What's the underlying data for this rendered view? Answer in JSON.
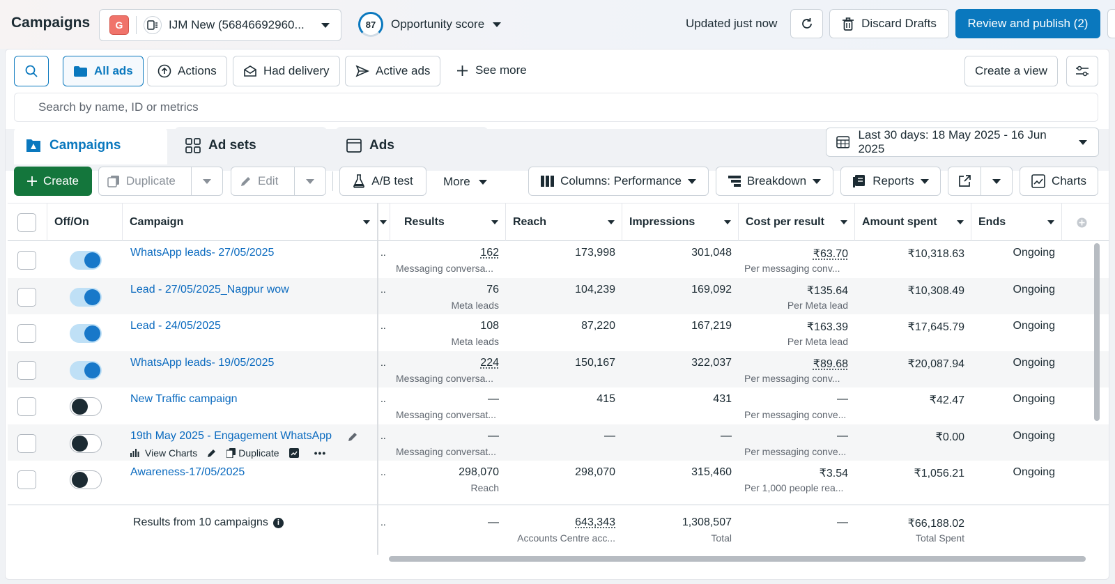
{
  "header": {
    "title": "Campaigns",
    "account_badge": "G",
    "account_name": "IJM New (56846692960...",
    "opportunity_score": "87",
    "opportunity_label": "Opportunity score",
    "updated": "Updated just now",
    "discard_label": "Discard Drafts",
    "publish_label": "Review and publish (2)"
  },
  "filters": {
    "all_ads": "All ads",
    "actions": "Actions",
    "had_delivery": "Had delivery",
    "active_ads": "Active ads",
    "see_more": "See more",
    "create_view": "Create a view"
  },
  "search": {
    "placeholder": "Search by name, ID or metrics"
  },
  "tabs": [
    {
      "label": "Campaigns"
    },
    {
      "label": "Ad sets"
    },
    {
      "label": "Ads"
    }
  ],
  "date_range": "Last 30 days: 18 May 2025 - 16 Jun 2025",
  "toolbar": {
    "create": "Create",
    "duplicate": "Duplicate",
    "edit": "Edit",
    "ab_test": "A/B test",
    "more": "More",
    "columns": "Columns: Performance",
    "breakdown": "Breakdown",
    "reports": "Reports",
    "charts": "Charts"
  },
  "table": {
    "headers": {
      "offon": "Off/On",
      "campaign": "Campaign",
      "results": "Results",
      "reach": "Reach",
      "impressions": "Impressions",
      "cost": "Cost per result",
      "amount": "Amount spent",
      "ends": "Ends"
    },
    "rows": [
      {
        "on": true,
        "name": "WhatsApp leads- 27/05/2025",
        "results": "162",
        "results_sub": "Messaging conversa...",
        "reach": "173,998",
        "impressions": "301,048",
        "cost": "₹63.70",
        "cost_sub": "Per messaging conv...",
        "amount": "₹10,318.63",
        "ends": "Ongoing"
      },
      {
        "on": true,
        "name": "Lead - 27/05/2025_Nagpur wow",
        "results": "76",
        "results_sub": "Meta leads",
        "reach": "104,239",
        "impressions": "169,092",
        "cost": "₹135.64",
        "cost_sub": "Per Meta lead",
        "amount": "₹10,308.49",
        "ends": "Ongoing"
      },
      {
        "on": true,
        "name": "Lead - 24/05/2025",
        "results": "108",
        "results_sub": "Meta leads",
        "reach": "87,220",
        "impressions": "167,219",
        "cost": "₹163.39",
        "cost_sub": "Per Meta lead",
        "amount": "₹17,645.79",
        "ends": "Ongoing"
      },
      {
        "on": true,
        "name": "WhatsApp leads- 19/05/2025",
        "results": "224",
        "results_sub": "Messaging conversa...",
        "reach": "150,167",
        "impressions": "322,037",
        "cost": "₹89.68",
        "cost_sub": "Per messaging conv...",
        "amount": "₹20,087.94",
        "ends": "Ongoing"
      },
      {
        "on": false,
        "name": "New Traffic campaign",
        "results": "—",
        "results_sub": "Messaging conversat...",
        "reach": "415",
        "impressions": "431",
        "cost": "—",
        "cost_sub": "Per messaging conve...",
        "amount": "₹42.47",
        "ends": "Ongoing"
      },
      {
        "on": false,
        "name": "19th May 2025 - Engagement WhatsApp",
        "results": "—",
        "results_sub": "Messaging conversat...",
        "reach": "—",
        "impressions": "—",
        "cost": "—",
        "cost_sub": "Per messaging conve...",
        "amount": "₹0.00",
        "ends": "Ongoing"
      },
      {
        "on": false,
        "name": "Awareness-17/05/2025",
        "results": "298,070",
        "results_sub": "Reach",
        "reach": "298,070",
        "impressions": "315,460",
        "cost": "₹3.54",
        "cost_sub": "Per 1,000 people rea...",
        "amount": "₹1,056.21",
        "ends": "Ongoing"
      }
    ],
    "hover_actions": {
      "view_charts": "View Charts",
      "duplicate": "Duplicate"
    },
    "truncated_marker": "..",
    "footer": {
      "label": "Results from 10 campaigns",
      "results": "—",
      "reach": "643,343",
      "reach_sub": "Accounts Centre acc...",
      "impressions": "1,308,507",
      "impressions_sub": "Total",
      "cost": "—",
      "amount": "₹66,188.02",
      "amount_sub": "Total Spent"
    }
  },
  "colors": {
    "primary": "#0a78be",
    "create": "#14763c",
    "link": "#0a6abf"
  }
}
